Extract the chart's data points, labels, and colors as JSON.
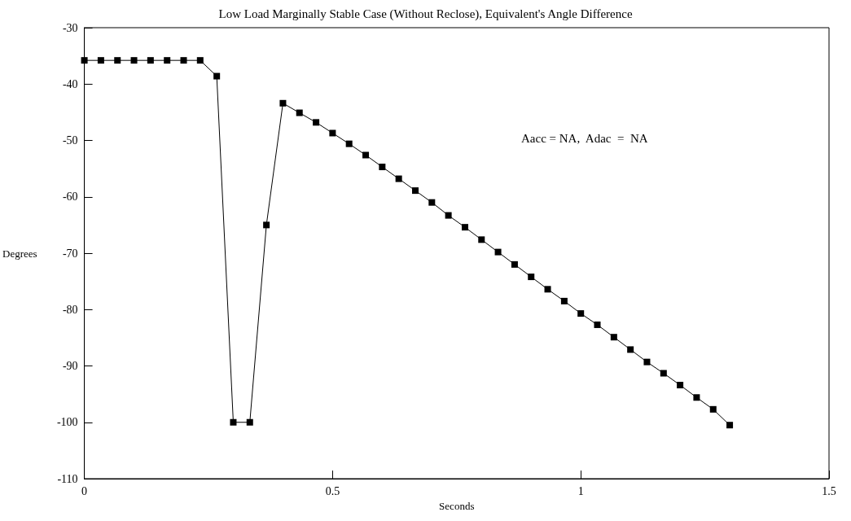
{
  "chart_data": {
    "type": "line",
    "title": "Low Load Marginally Stable Case (Without Reclose), Equivalent's Angle Difference",
    "xlabel": "Seconds",
    "ylabel": "Degrees",
    "annotations": [
      "Aacc = NA,  Adac  =  NA"
    ],
    "x": [
      0,
      0.0333,
      0.0667,
      0.1,
      0.1333,
      0.1667,
      0.2,
      0.2333,
      0.2667,
      0.3,
      0.3333,
      0.3667,
      0.4,
      0.4333,
      0.4667,
      0.5,
      0.5333,
      0.5667,
      0.6,
      0.6333,
      0.6667,
      0.7,
      0.7333,
      0.7667,
      0.8,
      0.8333,
      0.8667,
      0.9,
      0.9333,
      0.9667,
      1,
      1.0333,
      1.0667,
      1.1,
      1.1333,
      1.1667,
      1.2,
      1.2333,
      1.2667,
      1.3
    ],
    "series": [
      {
        "color": "#000000",
        "values": [
          -35.8,
          -35.8,
          -35.8,
          -35.8,
          -35.8,
          -35.8,
          -35.8,
          -35.8,
          -38.6,
          -100,
          -100,
          -65,
          -43.4,
          -45.1,
          -46.8,
          -48.7,
          -50.6,
          -52.6,
          -54.7,
          -56.8,
          -58.9,
          -61.0,
          -63.3,
          -65.4,
          -67.6,
          -69.8,
          -72.0,
          -74.2,
          -76.4,
          -78.5,
          -80.7,
          -82.7,
          -84.9,
          -87.1,
          -89.3,
          -91.3,
          -93.4,
          -95.6,
          -97.7,
          -100.5
        ]
      }
    ],
    "xlim": [
      0,
      1.5
    ],
    "xticks": [
      0,
      0.5,
      1,
      1.5
    ],
    "ylim": [
      -110,
      -30
    ],
    "yticks": [
      -110,
      -100,
      -90,
      -80,
      -70,
      -60,
      -50,
      -40,
      -30
    ],
    "grid": false,
    "marker": "square",
    "line_style": "solid"
  }
}
